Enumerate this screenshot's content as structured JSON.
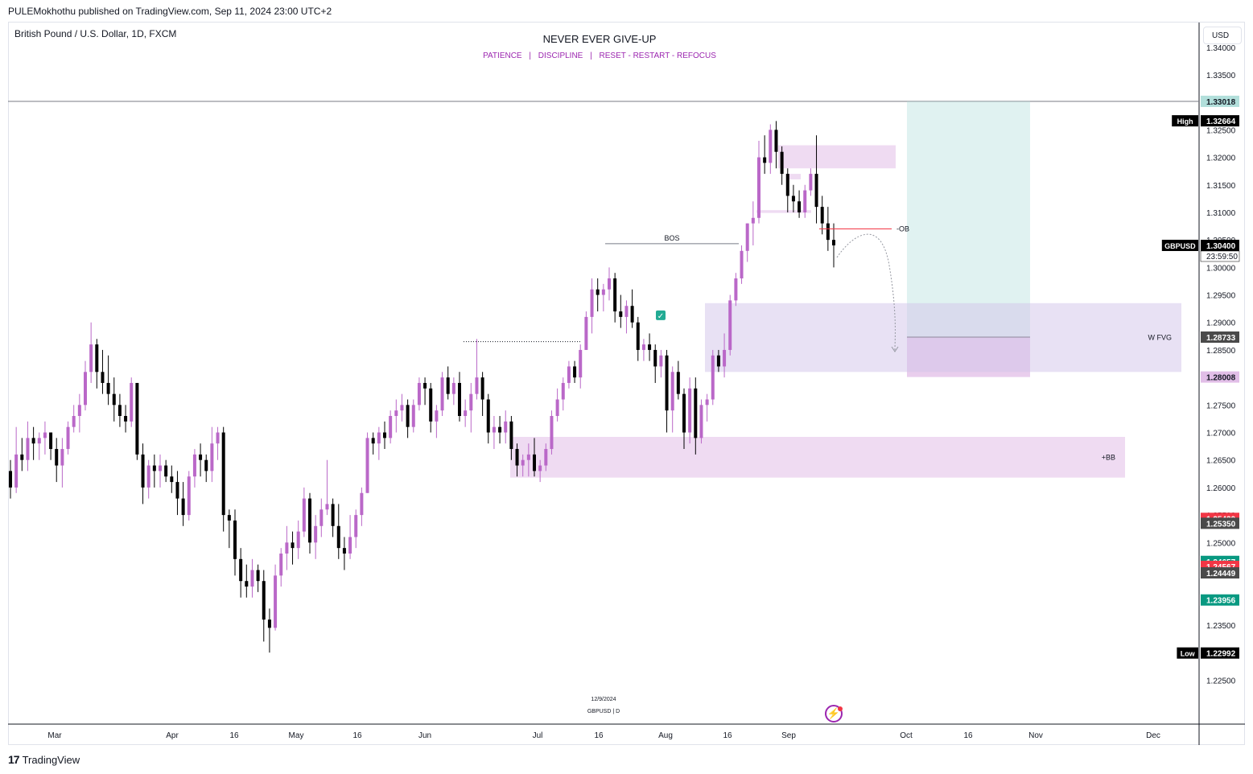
{
  "header": {
    "published_by": "PULEMokhothu published on TradingView.com, Sep 11, 2024 23:00 UTC+2",
    "symbol_title": "British Pound / U.S. Dollar, 1D, FXCM",
    "note_title": "NEVER EVER GIVE-UP",
    "note_items": [
      "PATIENCE",
      "DISCIPLINE",
      "RESET - RESTART - REFOCUS"
    ],
    "note_separator": "|",
    "currency": "USD"
  },
  "footer": {
    "brand": "TradingView",
    "logo_mark": "17",
    "replay_icon": "lightning-icon"
  },
  "colors": {
    "bull": "#ba68c8",
    "bear": "#000000",
    "zone": "#e1bee7",
    "fvg": "#d1c4e9",
    "target": "#b2dfdb",
    "red_line": "#f23645",
    "green_label": "#089981",
    "accent_text": "#9c27b0"
  },
  "chart_data": {
    "type": "candlestick",
    "symbol": "GBPUSD",
    "timeframe": "1D",
    "ylim": [
      1.217,
      1.3445
    ],
    "y_ticks": [
      "1.34000",
      "1.33500",
      "1.33000",
      "1.32500",
      "1.32000",
      "1.31500",
      "1.31000",
      "1.30500",
      "1.30000",
      "1.29500",
      "1.29000",
      "1.28500",
      "1.28000",
      "1.27500",
      "1.27000",
      "1.26500",
      "1.26000",
      "1.25500",
      "1.25000",
      "1.24500",
      "1.24000",
      "1.23500",
      "1.23000",
      "1.22500"
    ],
    "x_ticks": [
      {
        "label": "Mar",
        "x": 68
      },
      {
        "label": "Apr",
        "x": 214
      },
      {
        "label": "16",
        "x": 291
      },
      {
        "label": "May",
        "x": 368
      },
      {
        "label": "16",
        "x": 444
      },
      {
        "label": "Jun",
        "x": 528
      },
      {
        "label": "Jul",
        "x": 668
      },
      {
        "label": "16",
        "x": 744
      },
      {
        "label": "Aug",
        "x": 827
      },
      {
        "label": "16",
        "x": 904
      },
      {
        "label": "Sep",
        "x": 980
      },
      {
        "label": "Oct",
        "x": 1126
      },
      {
        "label": "16",
        "x": 1203
      },
      {
        "label": "Nov",
        "x": 1287
      },
      {
        "label": "Dec",
        "x": 1433
      }
    ],
    "candles": [
      [
        1.263,
        1.265,
        1.258,
        1.26
      ],
      [
        1.26,
        1.271,
        1.259,
        1.266
      ],
      [
        1.266,
        1.269,
        1.263,
        1.265
      ],
      [
        1.265,
        1.272,
        1.263,
        1.269
      ],
      [
        1.269,
        1.271,
        1.265,
        1.268
      ],
      [
        1.268,
        1.27,
        1.265,
        1.269
      ],
      [
        1.269,
        1.272,
        1.266,
        1.27
      ],
      [
        1.27,
        1.27,
        1.265,
        1.267
      ],
      [
        1.267,
        1.269,
        1.261,
        1.264
      ],
      [
        1.264,
        1.269,
        1.26,
        1.267
      ],
      [
        1.267,
        1.272,
        1.266,
        1.271
      ],
      [
        1.271,
        1.275,
        1.27,
        1.273
      ],
      [
        1.273,
        1.277,
        1.27,
        1.275
      ],
      [
        1.275,
        1.283,
        1.274,
        1.281
      ],
      [
        1.281,
        1.29,
        1.279,
        1.286
      ],
      [
        1.286,
        1.287,
        1.278,
        1.281
      ],
      [
        1.281,
        1.285,
        1.277,
        1.279
      ],
      [
        1.279,
        1.284,
        1.275,
        1.277
      ],
      [
        1.277,
        1.28,
        1.272,
        1.275
      ],
      [
        1.275,
        1.277,
        1.271,
        1.273
      ],
      [
        1.273,
        1.275,
        1.27,
        1.272
      ],
      [
        1.272,
        1.28,
        1.271,
        1.279
      ],
      [
        1.279,
        1.279,
        1.265,
        1.266
      ],
      [
        1.266,
        1.268,
        1.257,
        1.26
      ],
      [
        1.26,
        1.265,
        1.258,
        1.264
      ],
      [
        1.264,
        1.266,
        1.26,
        1.263
      ],
      [
        1.263,
        1.266,
        1.26,
        1.264
      ],
      [
        1.264,
        1.265,
        1.261,
        1.262
      ],
      [
        1.262,
        1.264,
        1.259,
        1.261
      ],
      [
        1.261,
        1.263,
        1.255,
        1.258
      ],
      [
        1.258,
        1.261,
        1.253,
        1.255
      ],
      [
        1.255,
        1.263,
        1.254,
        1.262
      ],
      [
        1.262,
        1.267,
        1.26,
        1.266
      ],
      [
        1.266,
        1.268,
        1.262,
        1.265
      ],
      [
        1.265,
        1.266,
        1.261,
        1.263
      ],
      [
        1.263,
        1.271,
        1.261,
        1.268
      ],
      [
        1.268,
        1.271,
        1.265,
        1.27
      ],
      [
        1.27,
        1.271,
        1.252,
        1.255
      ],
      [
        1.255,
        1.256,
        1.249,
        1.254
      ],
      [
        1.254,
        1.256,
        1.244,
        1.247
      ],
      [
        1.247,
        1.249,
        1.24,
        1.243
      ],
      [
        1.243,
        1.246,
        1.24,
        1.242
      ],
      [
        1.242,
        1.247,
        1.24,
        1.245
      ],
      [
        1.245,
        1.246,
        1.241,
        1.243
      ],
      [
        1.243,
        1.245,
        1.232,
        1.236
      ],
      [
        1.236,
        1.238,
        1.23,
        1.2345
      ],
      [
        1.2345,
        1.246,
        1.234,
        1.244
      ],
      [
        1.244,
        1.249,
        1.242,
        1.248
      ],
      [
        1.248,
        1.253,
        1.245,
        1.25
      ],
      [
        1.25,
        1.252,
        1.246,
        1.249
      ],
      [
        1.249,
        1.254,
        1.247,
        1.252
      ],
      [
        1.252,
        1.26,
        1.251,
        1.258
      ],
      [
        1.258,
        1.259,
        1.248,
        1.25
      ],
      [
        1.25,
        1.255,
        1.247,
        1.253
      ],
      [
        1.253,
        1.258,
        1.251,
        1.256
      ],
      [
        1.256,
        1.265,
        1.255,
        1.257
      ],
      [
        1.257,
        1.258,
        1.251,
        1.253
      ],
      [
        1.253,
        1.257,
        1.247,
        1.249
      ],
      [
        1.249,
        1.251,
        1.245,
        1.248
      ],
      [
        1.248,
        1.255,
        1.247,
        1.251
      ],
      [
        1.251,
        1.256,
        1.249,
        1.255
      ],
      [
        1.255,
        1.26,
        1.253,
        1.259
      ],
      [
        1.259,
        1.27,
        1.259,
        1.269
      ],
      [
        1.269,
        1.27,
        1.266,
        1.268
      ],
      [
        1.268,
        1.271,
        1.265,
        1.27
      ],
      [
        1.27,
        1.272,
        1.267,
        1.269
      ],
      [
        1.269,
        1.274,
        1.268,
        1.273
      ],
      [
        1.273,
        1.276,
        1.27,
        1.274
      ],
      [
        1.274,
        1.277,
        1.272,
        1.275
      ],
      [
        1.275,
        1.276,
        1.269,
        1.271
      ],
      [
        1.271,
        1.276,
        1.27,
        1.275
      ],
      [
        1.275,
        1.28,
        1.274,
        1.279
      ],
      [
        1.279,
        1.28,
        1.275,
        1.278
      ],
      [
        1.278,
        1.279,
        1.27,
        1.272
      ],
      [
        1.272,
        1.275,
        1.269,
        1.274
      ],
      [
        1.274,
        1.281,
        1.273,
        1.28
      ],
      [
        1.28,
        1.282,
        1.276,
        1.277
      ],
      [
        1.277,
        1.28,
        1.275,
        1.279
      ],
      [
        1.279,
        1.281,
        1.272,
        1.273
      ],
      [
        1.273,
        1.276,
        1.271,
        1.274
      ],
      [
        1.274,
        1.279,
        1.27,
        1.277
      ],
      [
        1.277,
        1.287,
        1.276,
        1.28
      ],
      [
        1.28,
        1.281,
        1.273,
        1.276
      ],
      [
        1.276,
        1.277,
        1.268,
        1.27
      ],
      [
        1.27,
        1.273,
        1.267,
        1.271
      ],
      [
        1.271,
        1.273,
        1.268,
        1.27
      ],
      [
        1.27,
        1.274,
        1.268,
        1.272
      ],
      [
        1.272,
        1.273,
        1.265,
        1.267
      ],
      [
        1.267,
        1.268,
        1.262,
        1.264
      ],
      [
        1.264,
        1.266,
        1.262,
        1.265
      ],
      [
        1.265,
        1.268,
        1.262,
        1.266
      ],
      [
        1.266,
        1.269,
        1.262,
        1.263
      ],
      [
        1.263,
        1.265,
        1.261,
        1.264
      ],
      [
        1.264,
        1.268,
        1.263,
        1.267
      ],
      [
        1.267,
        1.274,
        1.266,
        1.273
      ],
      [
        1.273,
        1.278,
        1.272,
        1.276
      ],
      [
        1.276,
        1.28,
        1.274,
        1.279
      ],
      [
        1.279,
        1.283,
        1.278,
        1.282
      ],
      [
        1.282,
        1.283,
        1.279,
        1.28
      ],
      [
        1.28,
        1.286,
        1.278,
        1.285
      ],
      [
        1.285,
        1.292,
        1.285,
        1.291
      ],
      [
        1.291,
        1.298,
        1.288,
        1.296
      ],
      [
        1.296,
        1.298,
        1.292,
        1.295
      ],
      [
        1.295,
        1.297,
        1.292,
        1.296
      ],
      [
        1.296,
        1.3,
        1.294,
        1.298
      ],
      [
        1.298,
        1.299,
        1.29,
        1.292
      ],
      [
        1.292,
        1.295,
        1.289,
        1.291
      ],
      [
        1.291,
        1.294,
        1.288,
        1.293
      ],
      [
        1.293,
        1.296,
        1.289,
        1.29
      ],
      [
        1.29,
        1.291,
        1.283,
        1.285
      ],
      [
        1.285,
        1.287,
        1.283,
        1.286
      ],
      [
        1.286,
        1.288,
        1.283,
        1.285
      ],
      [
        1.285,
        1.286,
        1.279,
        1.282
      ],
      [
        1.282,
        1.285,
        1.28,
        1.284
      ],
      [
        1.284,
        1.285,
        1.27,
        1.274
      ],
      [
        1.274,
        1.282,
        1.27,
        1.281
      ],
      [
        1.281,
        1.283,
        1.276,
        1.277
      ],
      [
        1.277,
        1.278,
        1.267,
        1.27
      ],
      [
        1.27,
        1.28,
        1.268,
        1.278
      ],
      [
        1.278,
        1.28,
        1.266,
        1.269
      ],
      [
        1.269,
        1.276,
        1.268,
        1.275
      ],
      [
        1.275,
        1.277,
        1.272,
        1.276
      ],
      [
        1.276,
        1.285,
        1.275,
        1.284
      ],
      [
        1.284,
        1.285,
        1.281,
        1.282
      ],
      [
        1.282,
        1.288,
        1.28,
        1.285
      ],
      [
        1.285,
        1.295,
        1.284,
        1.294
      ],
      [
        1.294,
        1.299,
        1.293,
        1.298
      ],
      [
        1.298,
        1.304,
        1.297,
        1.303
      ],
      [
        1.303,
        1.308,
        1.301,
        1.308
      ],
      [
        1.308,
        1.312,
        1.304,
        1.309
      ],
      [
        1.309,
        1.323,
        1.308,
        1.32
      ],
      [
        1.32,
        1.324,
        1.317,
        1.319
      ],
      [
        1.319,
        1.326,
        1.317,
        1.325
      ],
      [
        1.325,
        1.3266,
        1.318,
        1.321
      ],
      [
        1.321,
        1.322,
        1.315,
        1.317
      ],
      [
        1.317,
        1.318,
        1.31,
        1.313
      ],
      [
        1.313,
        1.315,
        1.31,
        1.312
      ],
      [
        1.312,
        1.314,
        1.309,
        1.31
      ],
      [
        1.31,
        1.315,
        1.309,
        1.314
      ],
      [
        1.314,
        1.318,
        1.313,
        1.317
      ],
      [
        1.317,
        1.324,
        1.308,
        1.311
      ],
      [
        1.311,
        1.313,
        1.306,
        1.308
      ],
      [
        1.308,
        1.311,
        1.303,
        1.305
      ],
      [
        1.305,
        1.308,
        1.3,
        1.304
      ]
    ],
    "zones": [
      {
        "label": "+BB",
        "x0": 634,
        "x1": 1398,
        "y0": 1.2692,
        "y1": 1.2618
      },
      {
        "label": "W FVG",
        "x0": 876,
        "x1": 1468,
        "y0": 1.2935,
        "y1": 1.281
      },
      {
        "label": "",
        "x0": 967,
        "x1": 1113,
        "y0": 1.3222,
        "y1": 1.318
      },
      {
        "label": "",
        "x0": 978,
        "x1": 995,
        "y0": 1.317,
        "y1": 1.316
      },
      {
        "label": "",
        "x0": 940,
        "x1": 1008,
        "y0": 1.3104,
        "y1": 1.3099
      }
    ],
    "target_box": {
      "x0": 1127,
      "x1": 1280,
      "top": 1.33018,
      "entry": 1.28733,
      "stop": 1.28008
    },
    "ob_line": {
      "label": "-OB",
      "value": 1.307,
      "x0": 1018,
      "x1": 1108
    },
    "bos": {
      "label": "BOS",
      "value": 1.3043,
      "x0": 752,
      "x1": 918
    },
    "dotted_level": {
      "value": 1.2865,
      "x0": 576,
      "x1": 722
    },
    "top_line": 1.33018,
    "price_labels": [
      {
        "text": "1.33018",
        "value": 1.33018,
        "bg": "#b2dfdb",
        "fg": "#131722"
      },
      {
        "text": "1.32664",
        "value": 1.32664,
        "bg": "#000000",
        "fg": "#ffffff",
        "tag": "High"
      },
      {
        "text": "1.30400",
        "value": 1.304,
        "bg": "#000000",
        "fg": "#ffffff",
        "tag": "GBPUSD",
        "sub": "23:59:50"
      },
      {
        "text": "1.28733",
        "value": 1.28733,
        "bg": "#4a4a4a",
        "fg": "#ffffff"
      },
      {
        "text": "1.28008",
        "value": 1.28008,
        "bg": "#e1bee7",
        "fg": "#131722"
      },
      {
        "text": "1.25439",
        "value": 1.25439,
        "bg": "#f23645",
        "fg": "#ffffff"
      },
      {
        "text": "1.25350",
        "value": 1.2535,
        "bg": "#4a4a4a",
        "fg": "#ffffff"
      },
      {
        "text": "1.24657",
        "value": 1.24657,
        "bg": "#089981",
        "fg": "#ffffff"
      },
      {
        "text": "1.24567",
        "value": 1.24567,
        "bg": "#f23645",
        "fg": "#ffffff"
      },
      {
        "text": "1.24449",
        "value": 1.24449,
        "bg": "#4a4a4a",
        "fg": "#ffffff"
      },
      {
        "text": "1.23956",
        "value": 1.23956,
        "bg": "#089981",
        "fg": "#ffffff"
      },
      {
        "text": "1.22992",
        "value": 1.22992,
        "bg": "#000000",
        "fg": "#ffffff",
        "tag": "Low"
      }
    ],
    "watermark": {
      "date": "12/9/2024",
      "symbol": "GBPUSD | D"
    },
    "checkmark": {
      "icon": "check-icon",
      "value": 1.2913
    }
  }
}
